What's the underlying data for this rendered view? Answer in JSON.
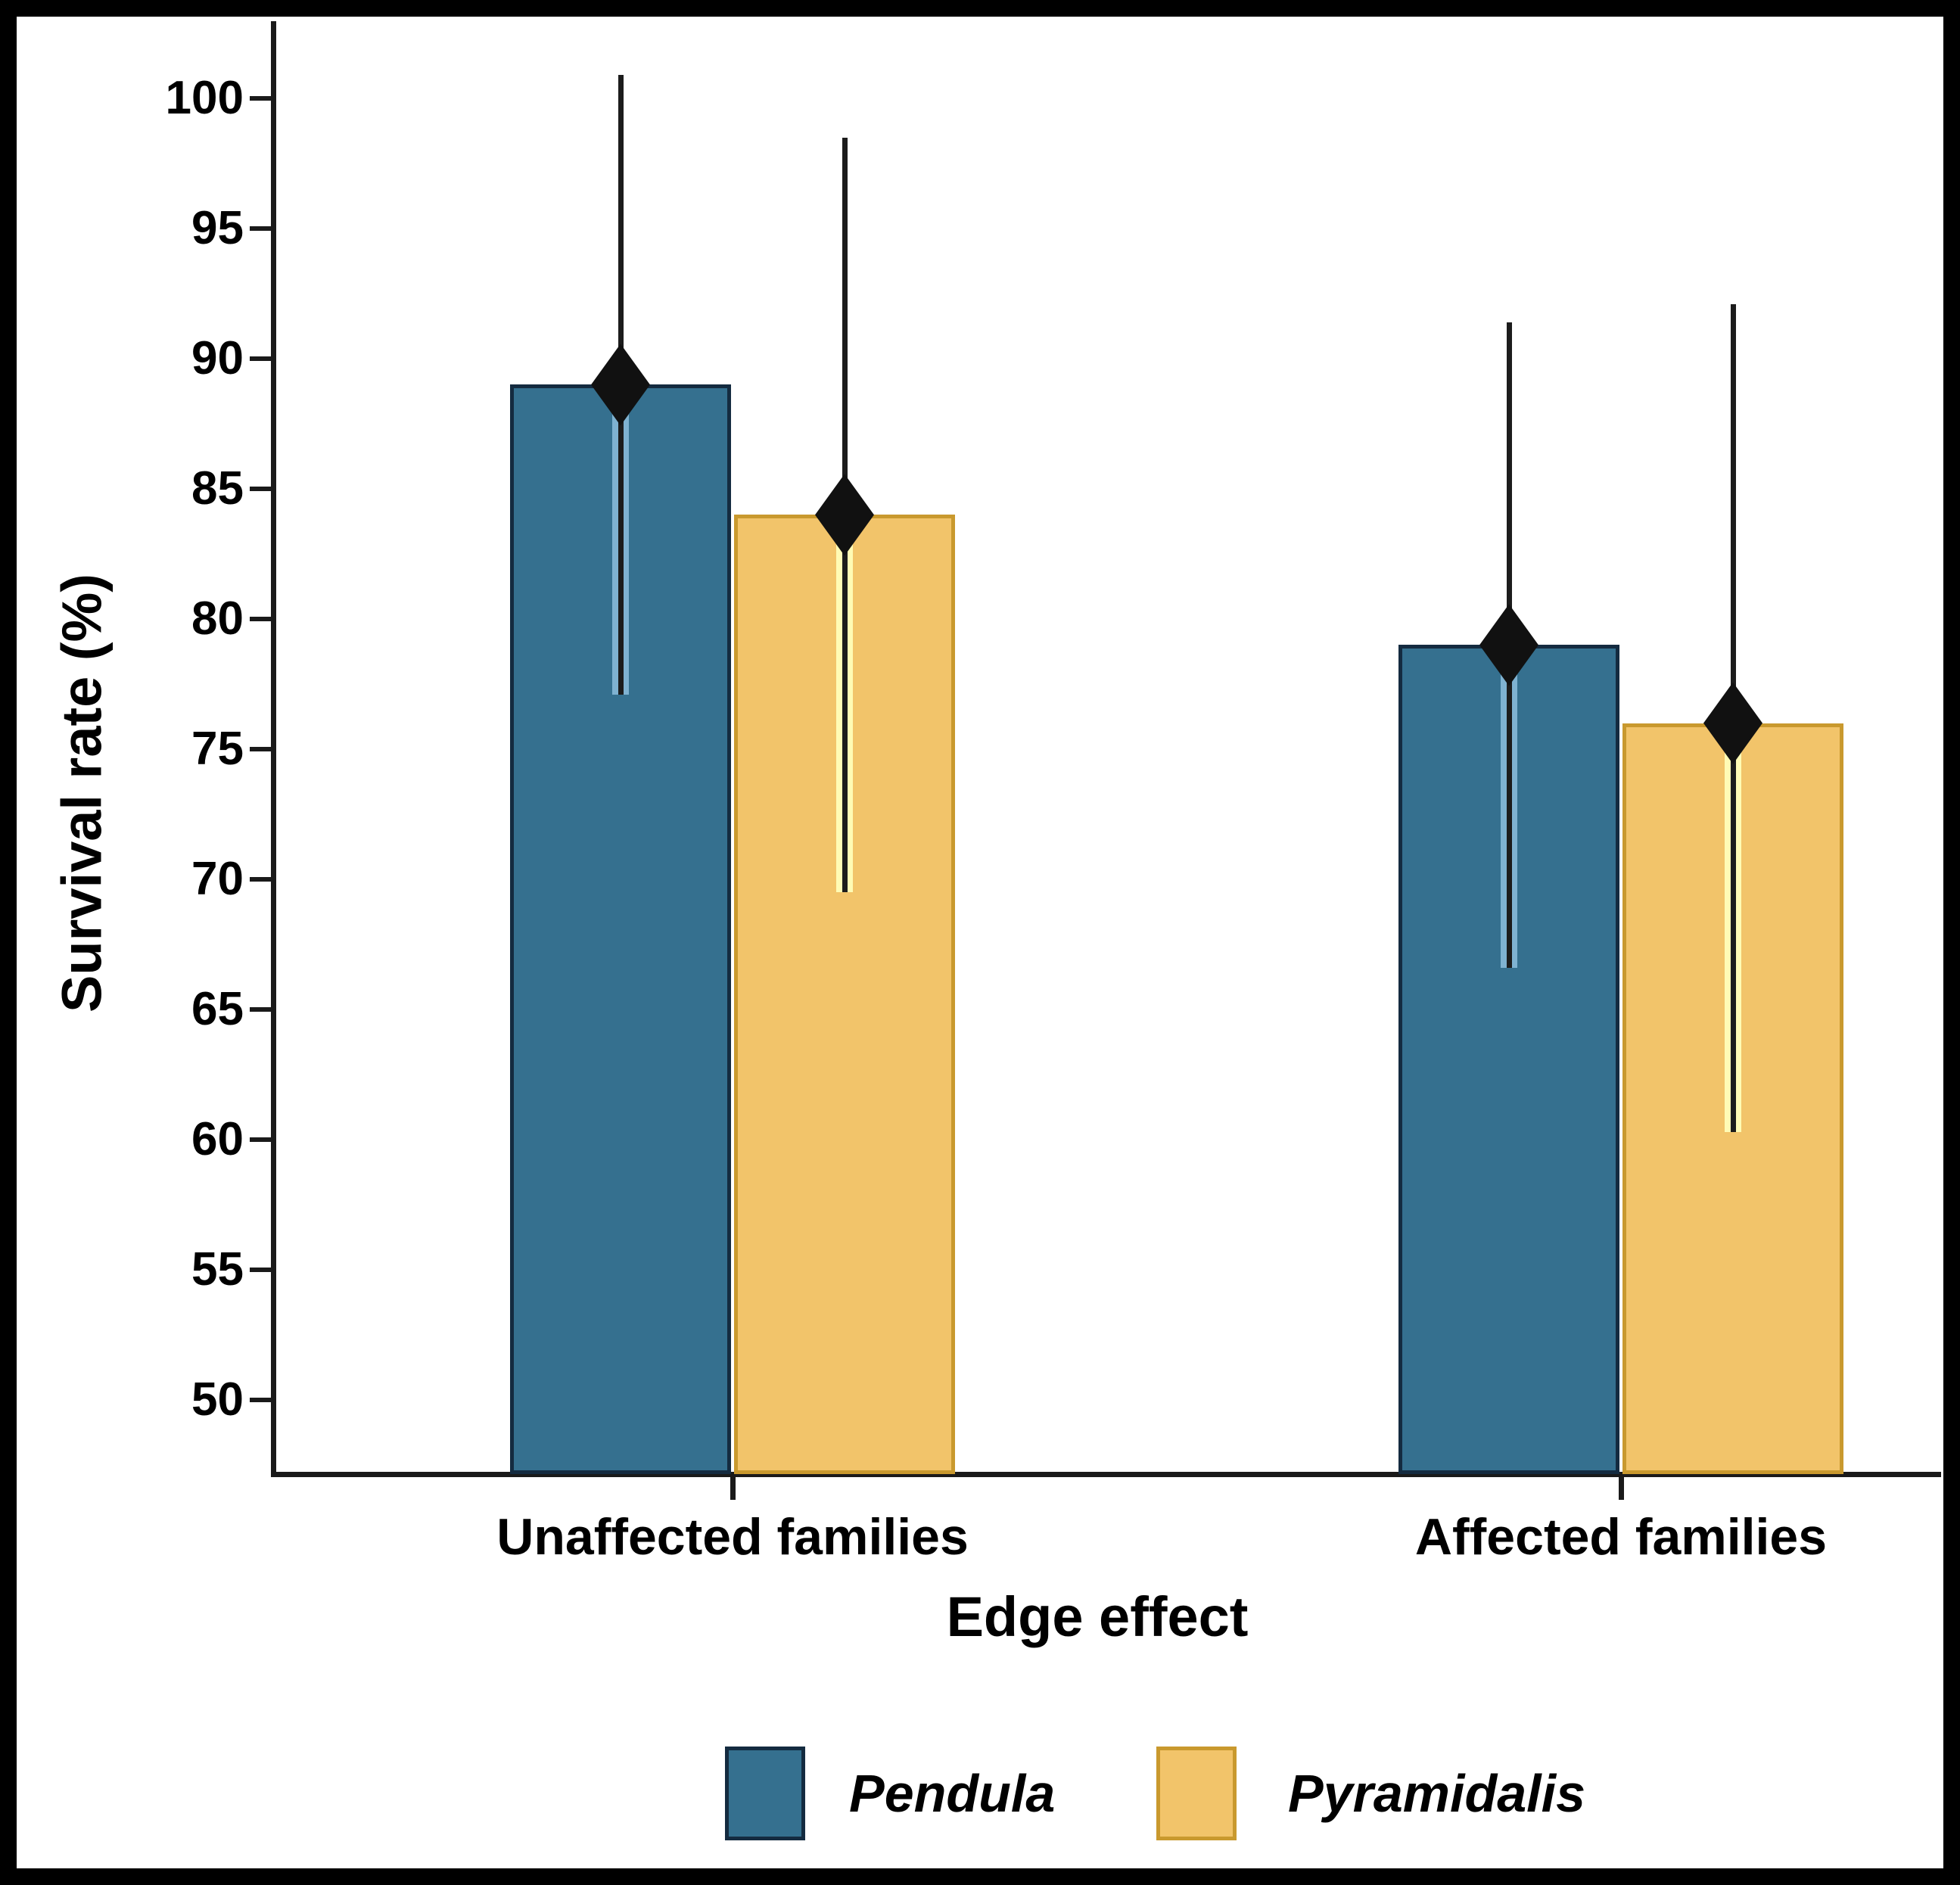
{
  "chart_data": {
    "type": "bar",
    "title": "",
    "xlabel": "Edge effect",
    "ylabel": "Survival rate (%)",
    "categories": [
      "Unaffected families",
      "Affected families"
    ],
    "series": [
      {
        "name": "Pendula",
        "means": [
          89,
          79
        ],
        "ci_low": [
          77.1,
          66.6
        ],
        "ci_high": [
          100.9,
          91.4
        ],
        "fill": "#35708F",
        "border": "#142B40",
        "halo": "#7FB2D1"
      },
      {
        "name": "Pyramidalis",
        "means": [
          84,
          76
        ],
        "ci_low": [
          69.5,
          60.3
        ],
        "ci_high": [
          98.5,
          92.1
        ],
        "fill": "#F2C46A",
        "border": "#C9992E",
        "halo": "#FFFBB5"
      }
    ],
    "y_ticks": [
      50,
      55,
      60,
      65,
      70,
      75,
      80,
      85,
      90,
      95,
      100
    ],
    "ylim": [
      47.2,
      102.9
    ],
    "grid": false,
    "marker": "diamond",
    "error_bar_color": "#1c1c1c",
    "legend_position": "bottom"
  }
}
